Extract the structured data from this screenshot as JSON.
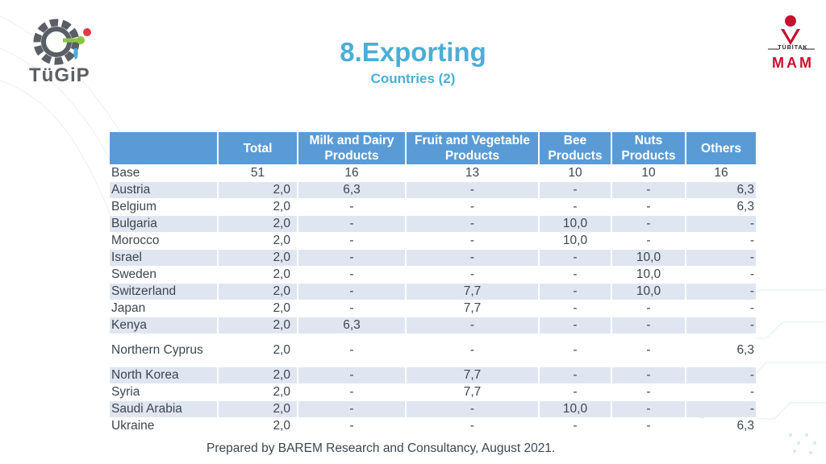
{
  "header": {
    "title": "8.Exporting",
    "subtitle": "Countries (2)",
    "left_logo_text": "TüGiP",
    "right_logo_top": "TÜBİTAK",
    "right_logo_bottom": "MAM"
  },
  "table": {
    "columns": [
      "",
      "Total",
      "Milk and Dairy Products",
      "Fruit and Vegetable Products",
      "Bee Products",
      "Nuts Products",
      "Others"
    ],
    "rows": [
      [
        "Base",
        "51",
        "16",
        "13",
        "10",
        "10",
        "16"
      ],
      [
        "Austria",
        "2,0",
        "6,3",
        "-",
        "-",
        "-",
        "6,3"
      ],
      [
        "Belgium",
        "2,0",
        "-",
        "-",
        "-",
        "-",
        "6,3"
      ],
      [
        "Bulgaria",
        "2,0",
        "-",
        "-",
        "10,0",
        "-",
        "-"
      ],
      [
        "Morocco",
        "2,0",
        "-",
        "-",
        "10,0",
        "-",
        "-"
      ],
      [
        "Israel",
        "2,0",
        "-",
        "-",
        "-",
        "10,0",
        "-"
      ],
      [
        "Sweden",
        "2,0",
        "-",
        "-",
        "-",
        "10,0",
        "-"
      ],
      [
        "Switzerland",
        "2,0",
        "-",
        "7,7",
        "-",
        "10,0",
        "-"
      ],
      [
        "Japan",
        "2,0",
        "-",
        "7,7",
        "-",
        "-",
        "-"
      ],
      [
        "Kenya",
        "2,0",
        "6,3",
        "-",
        "-",
        "-",
        "-"
      ],
      [
        "Northern Cyprus",
        "2,0",
        "-",
        "-",
        "-",
        "-",
        "6,3"
      ],
      [
        "North Korea",
        "2,0",
        "-",
        "7,7",
        "-",
        "-",
        "-"
      ],
      [
        "Syria",
        "2,0",
        "-",
        "7,7",
        "-",
        "-",
        "-"
      ],
      [
        "Saudi Arabia",
        "2,0",
        "-",
        "-",
        "10,0",
        "-",
        "-"
      ],
      [
        "Ukraine",
        "2,0",
        "-",
        "-",
        "-",
        "-",
        "6,3"
      ]
    ]
  },
  "footer": {
    "text": "Prepared by BAREM Research and Consultancy, August 2021."
  },
  "colors": {
    "accent": "#4aaed8",
    "header_bg": "#5b9bd5",
    "row_alt": "#dfe6f1",
    "brand_red": "#c8102e"
  },
  "icons": {
    "left_logo": "gear-logo-icon",
    "right_logo": "tubitak-emblem-icon"
  }
}
